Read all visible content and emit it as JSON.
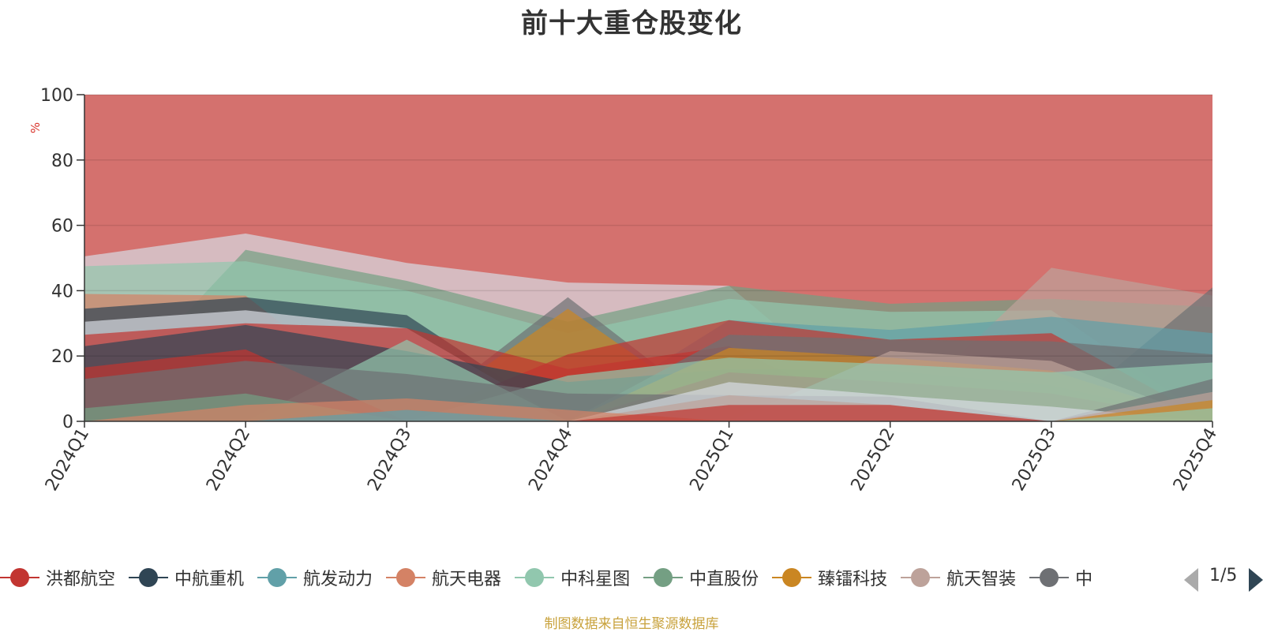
{
  "title": "前十大重仓股变化",
  "source_note": "制图数据来自恒生聚源数据库",
  "legend_pager": "1/5",
  "chart_data": {
    "type": "area",
    "title": "前十大重仓股变化",
    "ylabel": "%",
    "xlabel": "",
    "ylim": [
      0,
      100
    ],
    "yticks": [
      0,
      20,
      40,
      60,
      80,
      100
    ],
    "grid": true,
    "legend_position": "bottom",
    "categories": [
      "2024Q1",
      "2024Q2",
      "2024Q3",
      "2024Q4",
      "2025Q1",
      "2025Q2",
      "2025Q3",
      "2025Q4"
    ],
    "layers": [
      {
        "color": "#ca8622",
        "values": [
          0,
          0,
          0,
          0,
          0,
          0,
          0,
          0
        ]
      },
      {
        "color": "#61a0a8",
        "values": [
          0,
          0,
          3.5,
          0,
          0,
          0,
          0,
          0
        ]
      },
      {
        "color": "#d48265",
        "values": [
          0,
          5,
          7,
          3.5,
          0,
          0,
          0,
          0
        ]
      },
      {
        "color": "#c23531",
        "values": [
          0,
          0,
          0,
          0,
          5,
          5,
          0,
          0
        ]
      },
      {
        "color": "#91c7ae",
        "values": [
          0,
          0,
          0,
          0,
          0,
          0,
          0,
          4
        ]
      },
      {
        "color": "#ca8622",
        "values": [
          0,
          0,
          0,
          0,
          0,
          0,
          0,
          6.5
        ]
      },
      {
        "color": "#749f83",
        "values": [
          4,
          8.5,
          0,
          0,
          0,
          0,
          0,
          0
        ]
      },
      {
        "color": "#bda29a",
        "values": [
          0,
          0,
          0,
          0,
          8,
          5,
          0,
          9
        ]
      },
      {
        "color": "#6e7074",
        "values": [
          13,
          18.5,
          14.5,
          8.5,
          8,
          7.5,
          0,
          13
        ]
      },
      {
        "color": "#d7dce3",
        "values": [
          0,
          0,
          0,
          0,
          12,
          8,
          4.5,
          0
        ]
      },
      {
        "color": "#c23531",
        "values": [
          16.5,
          22,
          0,
          0,
          15,
          12,
          8.5,
          0
        ]
      },
      {
        "color": "#2f4554",
        "values": [
          23,
          29.5,
          21.5,
          12,
          16,
          15.5,
          11,
          0
        ]
      },
      {
        "color": "#91c7ae",
        "values": [
          0,
          0,
          0,
          14,
          19.5,
          17.5,
          15,
          18
        ]
      },
      {
        "color": "#ca8622",
        "values": [
          0,
          0,
          0,
          0,
          22.5,
          19.5,
          15.5,
          0
        ]
      },
      {
        "color": "#bda29a",
        "values": [
          0,
          0,
          0,
          0,
          0,
          21.5,
          18.5,
          0
        ]
      },
      {
        "color": "#c23531",
        "values": [
          26.5,
          30,
          28.5,
          16,
          23,
          0,
          0,
          0
        ]
      },
      {
        "color": "#6e7074",
        "values": [
          0,
          0,
          0,
          0,
          26.5,
          25,
          24.5,
          20.5
        ]
      },
      {
        "color": "#91c7ae",
        "values": [
          0,
          0,
          25,
          0,
          0,
          0,
          0,
          0
        ]
      },
      {
        "color": "#d7dce3",
        "values": [
          30.5,
          34,
          28.5,
          0,
          0,
          0,
          0,
          0
        ]
      },
      {
        "color": "#c23531",
        "values": [
          0,
          0,
          0,
          20.5,
          31,
          25,
          27,
          0
        ]
      },
      {
        "color": "#2f4554",
        "values": [
          34.5,
          38,
          32.5,
          0,
          0,
          0,
          0,
          0
        ]
      },
      {
        "color": "#61a0a8",
        "values": [
          0,
          0,
          0,
          0,
          31,
          28,
          32,
          27
        ]
      },
      {
        "color": "#d48265",
        "values": [
          39,
          38.5,
          0,
          0,
          0,
          0,
          0,
          0
        ]
      },
      {
        "color": "#91c7ae",
        "values": [
          47.5,
          49,
          40,
          27,
          37.5,
          33.5,
          34,
          0
        ]
      },
      {
        "color": "#749f83",
        "values": [
          0,
          52.5,
          43,
          30.5,
          41.5,
          36,
          37.5,
          35
        ]
      },
      {
        "color": "#ca8622",
        "values": [
          0,
          0,
          0,
          34.5,
          0,
          0,
          0,
          0
        ]
      },
      {
        "color": "#6e7074",
        "values": [
          0,
          0,
          0,
          38,
          0,
          0,
          0,
          0
        ]
      },
      {
        "color": "#bda29a",
        "values": [
          0,
          0,
          0,
          0,
          0,
          0,
          47,
          38.5
        ]
      },
      {
        "color": "#d7dce3",
        "values": [
          50.5,
          57.5,
          48.5,
          42.5,
          41.5,
          0,
          0,
          0
        ]
      },
      {
        "color": "#6e7074",
        "values": [
          0,
          0,
          0,
          0,
          0,
          0,
          0,
          41
        ]
      },
      {
        "color": "#c23531",
        "values": [
          100,
          100,
          100,
          100,
          100,
          100,
          100,
          100
        ]
      }
    ],
    "series": [
      {
        "name": "洪都航空",
        "color": "#c23531"
      },
      {
        "name": "中航重机",
        "color": "#2f4554"
      },
      {
        "name": "航发动力",
        "color": "#61a0a8"
      },
      {
        "name": "航天电器",
        "color": "#d48265"
      },
      {
        "name": "中科星图",
        "color": "#91c7ae"
      },
      {
        "name": "中直股份",
        "color": "#749f83"
      },
      {
        "name": "臻镭科技",
        "color": "#ca8622"
      },
      {
        "name": "航天智装",
        "color": "#bda29a"
      },
      {
        "name": "中",
        "color": "#6e7074"
      }
    ]
  }
}
